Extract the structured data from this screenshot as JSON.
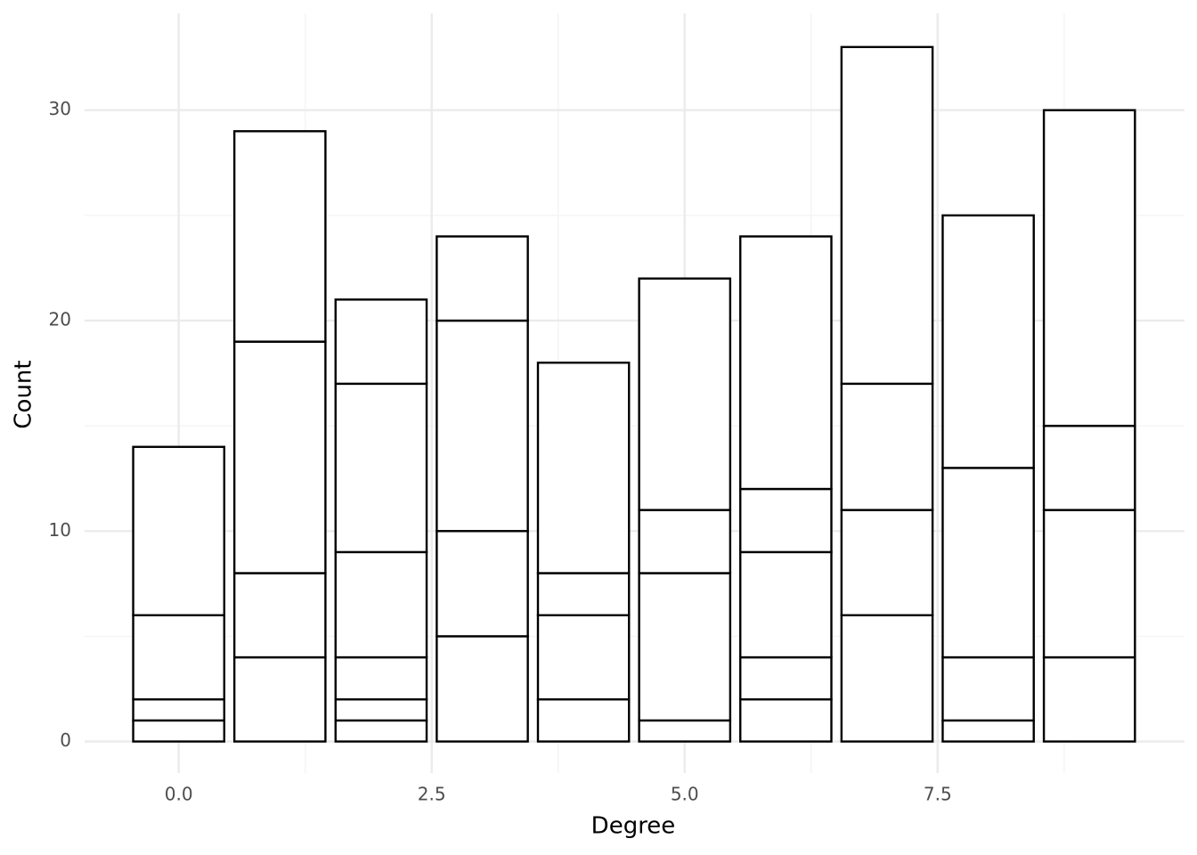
{
  "chart_data": {
    "type": "stacked-bar",
    "x_label": "Degree",
    "y_label": "Count",
    "x": [
      0,
      1,
      2,
      3,
      4,
      5,
      6,
      7,
      8,
      9
    ],
    "segments": [
      [
        1,
        1,
        4,
        8
      ],
      [
        4,
        4,
        11,
        10
      ],
      [
        1,
        1,
        2,
        5,
        8,
        4
      ],
      [
        5,
        5,
        10,
        4
      ],
      [
        2,
        4,
        2,
        10
      ],
      [
        1,
        7,
        3,
        11
      ],
      [
        2,
        2,
        5,
        3,
        12
      ],
      [
        6,
        5,
        6,
        16
      ],
      [
        1,
        3,
        9,
        12
      ],
      [
        4,
        7,
        4,
        15
      ]
    ],
    "fill": "#ffffff",
    "stroke": "#000000",
    "bar_width": 0.9,
    "xlim": [
      -0.93,
      9.94
    ],
    "ylim": [
      -1.5,
      34.6
    ],
    "xticks": [
      {
        "value": 0,
        "label": "0.0"
      },
      2.5,
      {
        "value": 5,
        "label": "5.0"
      },
      7.5
    ],
    "xminorticks": [
      1.25,
      3.75,
      6.25,
      8.75
    ],
    "yticks": [
      0,
      10,
      20,
      30
    ],
    "yminorticks": [
      5,
      15,
      25
    ],
    "grid": true
  }
}
